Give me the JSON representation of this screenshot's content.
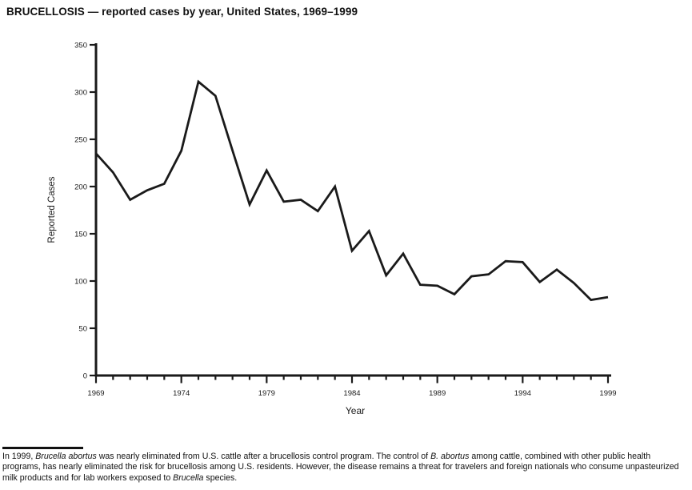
{
  "page": {
    "background": "#ffffff",
    "text_color": "#1a1a1a"
  },
  "chart_data": {
    "type": "line",
    "title": "BRUCELLOSIS — reported cases by year, United States, 1969–1999",
    "xlabel": "Year",
    "ylabel": "Reported Cases",
    "x": [
      1969,
      1970,
      1971,
      1972,
      1973,
      1974,
      1975,
      1976,
      1977,
      1978,
      1979,
      1980,
      1981,
      1982,
      1983,
      1984,
      1985,
      1986,
      1987,
      1988,
      1989,
      1990,
      1991,
      1992,
      1993,
      1994,
      1995,
      1996,
      1997,
      1998,
      1999
    ],
    "values": [
      235,
      215,
      186,
      196,
      203,
      238,
      311,
      296,
      238,
      181,
      217,
      184,
      186,
      174,
      200,
      132,
      153,
      106,
      129,
      96,
      95,
      86,
      105,
      107,
      121,
      120,
      99,
      112,
      98,
      80,
      83
    ],
    "ylim": [
      0,
      350
    ],
    "ytick_step": 50,
    "xlim": [
      1969,
      1999
    ],
    "xticks_major": [
      1969,
      1974,
      1979,
      1984,
      1989,
      1994,
      1999
    ],
    "xtick_minor_step": 1,
    "grid": false,
    "legend": "none",
    "line_color": "#1a1a1a",
    "axis_color": "#1a1a1a"
  },
  "footnote": {
    "segments": [
      {
        "text": "In 1999, ",
        "italic": false
      },
      {
        "text": "Brucella abortus",
        "italic": true
      },
      {
        "text": "was nearly eliminated from U.S. cattle after a brucellosis control program. The control of ",
        "italic": false
      },
      {
        "text": "B. abortus",
        "italic": true
      },
      {
        "text": "among cattle, combined with other public health programs, has nearly eliminated the risk for brucellosis among U.S. residents. However, the disease remains a threat for travelers and foreign nationals who consume unpasteurized milk products and for lab workers exposed to ",
        "italic": false
      },
      {
        "text": "Brucella",
        "italic": true
      },
      {
        "text": "species.",
        "italic": false
      }
    ]
  }
}
